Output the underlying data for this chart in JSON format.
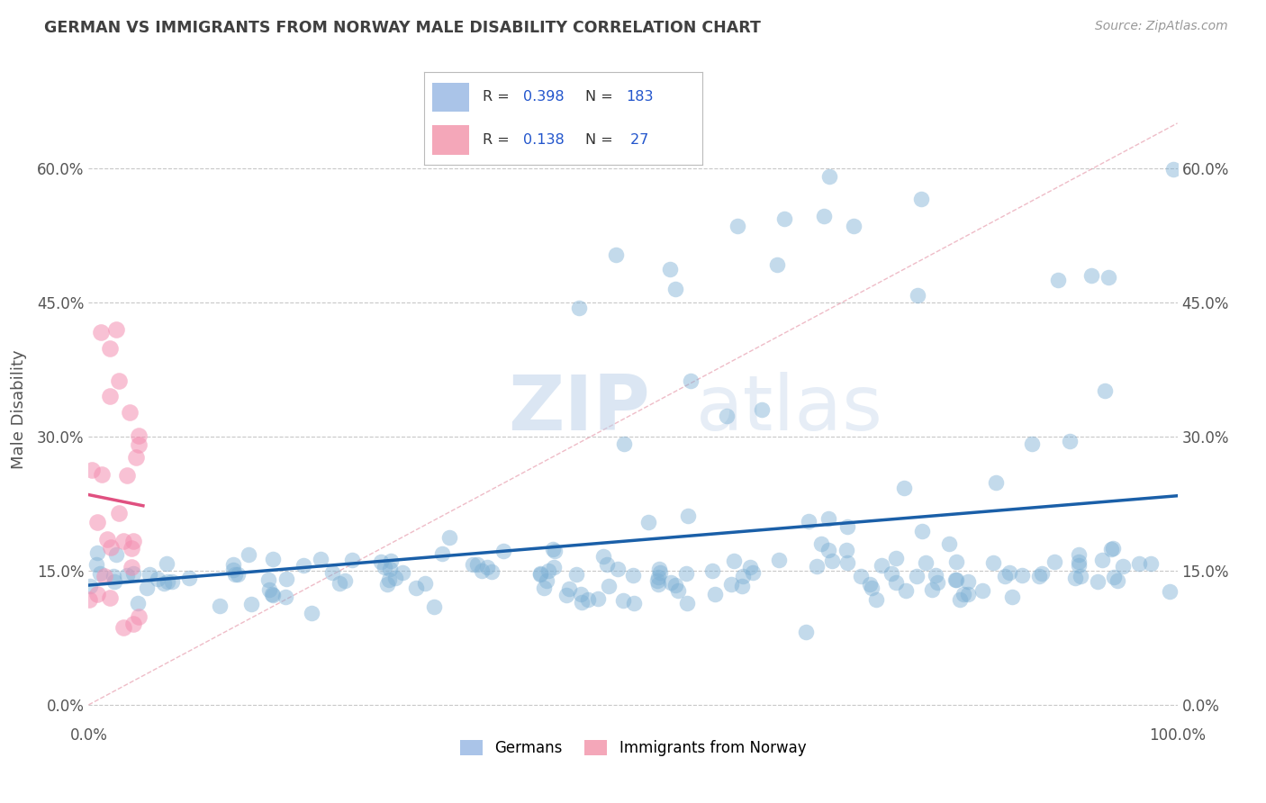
{
  "title": "GERMAN VS IMMIGRANTS FROM NORWAY MALE DISABILITY CORRELATION CHART",
  "source": "Source: ZipAtlas.com",
  "ylabel": "Male Disability",
  "xlabel": "",
  "xlim": [
    0.0,
    1.0
  ],
  "ylim": [
    -0.02,
    0.68
  ],
  "yticks": [
    0.0,
    0.15,
    0.3,
    0.45,
    0.6
  ],
  "ytick_labels": [
    "0.0%",
    "15.0%",
    "30.0%",
    "45.0%",
    "60.0%"
  ],
  "xtick_labels": [
    "0.0%",
    "100.0%"
  ],
  "r_german": 0.398,
  "n_german": 183,
  "r_norway": 0.138,
  "n_norway": 27,
  "german_color": "#7bafd4",
  "norway_color": "#f48fb1",
  "german_line_color": "#1a5fa8",
  "norway_line_color": "#e05080",
  "watermark_zip": "ZIP",
  "watermark_atlas": "atlas",
  "background_color": "#ffffff",
  "grid_color": "#c8c8c8",
  "title_color": "#404040",
  "seed": 7
}
